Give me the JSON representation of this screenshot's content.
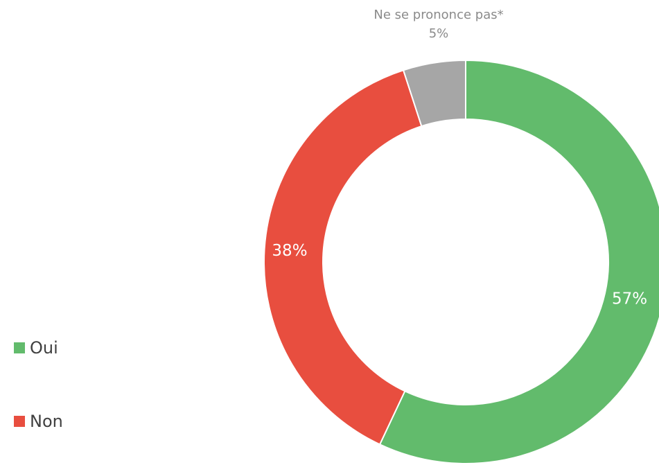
{
  "chart_data": {
    "type": "donut",
    "categories": [
      "Oui",
      "Non",
      "Ne se prononce pas*"
    ],
    "values": [
      57,
      38,
      5
    ],
    "value_labels": [
      "57%",
      "38%",
      "5%"
    ],
    "colors": [
      "#62bb6c",
      "#e84e3f",
      "#a6a6a6"
    ]
  }
}
